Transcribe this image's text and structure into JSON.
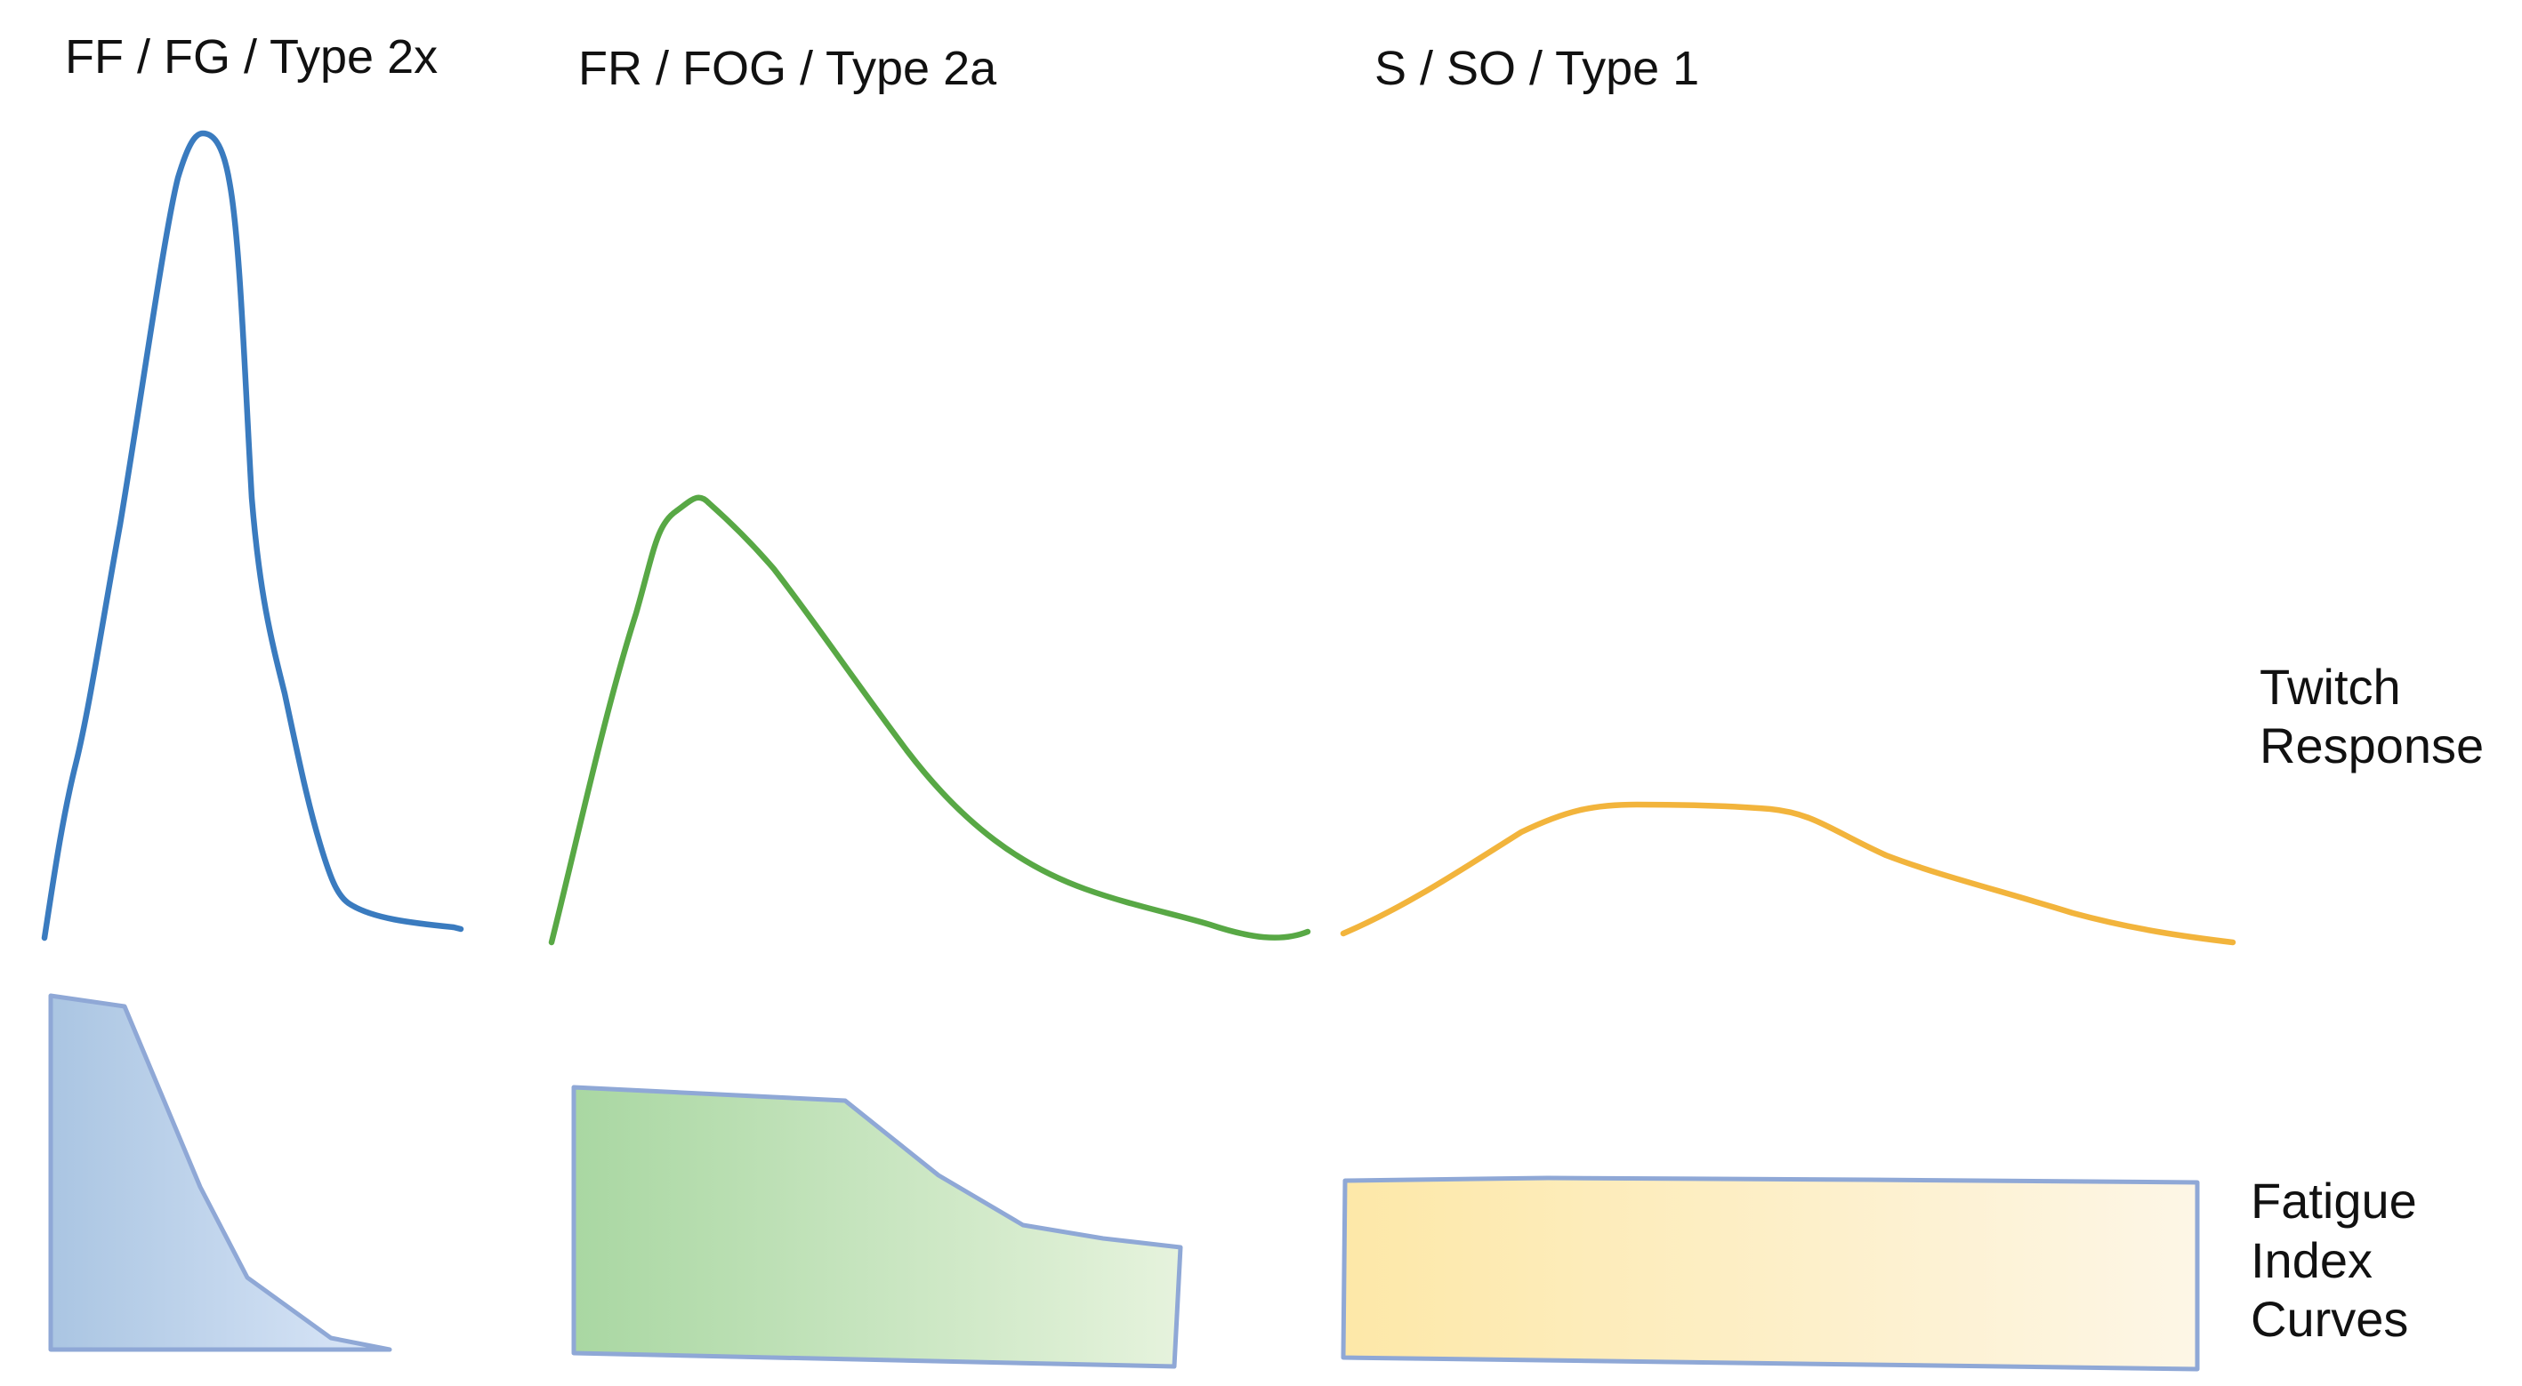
{
  "fibers": [
    {
      "label": "FF / FG / Type 2x",
      "twitch_color": "#3a7bbf",
      "fatigue_fill_start": "#aac5e2",
      "fatigue_fill_end": "#dbe7f8"
    },
    {
      "label": "FR / FOG / Type 2a",
      "twitch_color": "#58a845",
      "fatigue_fill_start": "#a9d7a2",
      "fatigue_fill_end": "#e6f3dd"
    },
    {
      "label": "S / SO / Type 1",
      "twitch_color": "#f2b43c",
      "fatigue_fill_start": "#fde8a8",
      "fatigue_fill_end": "#fdf6e6"
    }
  ],
  "row_labels": {
    "twitch_line1": "Twitch",
    "twitch_line2": "Response",
    "fatigue_line1": "Fatigue",
    "fatigue_line2": "Index",
    "fatigue_line3": "Curves"
  },
  "fatigue_outline_color": "#8fa8d6"
}
